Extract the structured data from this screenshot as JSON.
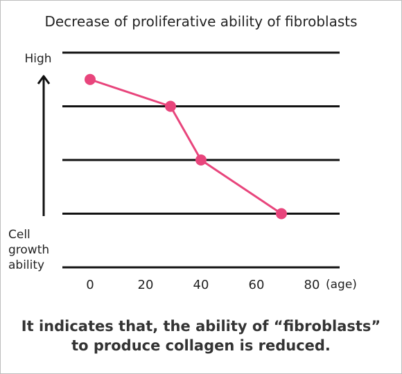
{
  "chart_data": {
    "type": "line",
    "title": "Decrease of proliferative ability of fibroblasts",
    "y_top_label": "High",
    "ylabel_lines": [
      "Cell",
      "growth",
      "ability"
    ],
    "x_ticks": [
      "0",
      "20",
      "40",
      "60",
      "80"
    ],
    "x_unit": "(age)",
    "xlim": [
      0,
      90
    ],
    "ylim": [
      0,
      4
    ],
    "grid": true,
    "series": [
      {
        "color": "#e8457c",
        "points": [
          {
            "x": 0,
            "y": 3.5
          },
          {
            "x": 29,
            "y": 3.0
          },
          {
            "x": 40,
            "y": 2.0
          },
          {
            "x": 69,
            "y": 1.0
          }
        ]
      }
    ]
  },
  "caption": {
    "line1": "It indicates that, the ability of “fibroblasts”",
    "line2": "to produce collagen is reduced."
  },
  "colors": {
    "line": "#e8457c",
    "grid": "#111111",
    "arrow": "#111111"
  }
}
